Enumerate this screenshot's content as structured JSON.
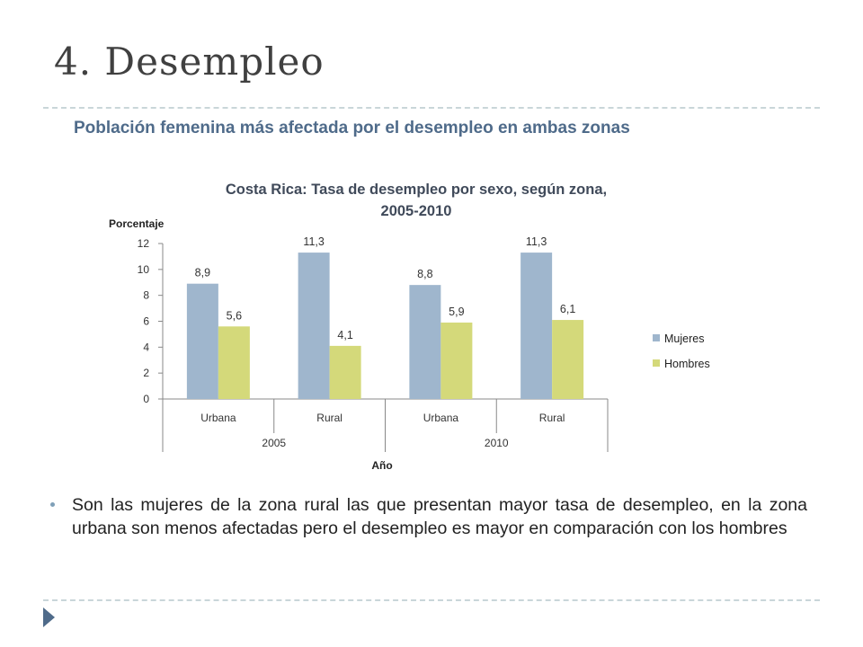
{
  "slide": {
    "title": "4. Desempleo",
    "subtitle": "Población femenina más afectada por el desempleo en ambas zonas",
    "bullet": "Son las mujeres de la zona rural las que presentan mayor tasa de desempleo,  en la zona urbana son menos afectadas pero el desempleo es mayor en comparación con los hombres"
  },
  "chart_data": {
    "type": "bar",
    "title_line1": "Costa Rica: Tasa de desempleo por sexo, según zona,",
    "title_line2": "2005-2010",
    "ylabel": "Porcentaje",
    "xlabel": "Año",
    "ylim": [
      0,
      12
    ],
    "yticks": [
      "0",
      "2",
      "4",
      "6",
      "8",
      "10",
      "12"
    ],
    "categories": [
      "Urbana",
      "Rural",
      "Urbana",
      "Rural"
    ],
    "groups": [
      {
        "label": "2005",
        "span": 2
      },
      {
        "label": "2010",
        "span": 2
      }
    ],
    "series": [
      {
        "name": "Mujeres",
        "color": "#9fb6cd",
        "values": [
          8.9,
          11.3,
          8.8,
          11.3
        ],
        "labels": [
          "8,9",
          "11,3",
          "8,8",
          "11,3"
        ]
      },
      {
        "name": "Hombres",
        "color": "#d4d97a",
        "values": [
          5.6,
          4.1,
          5.9,
          6.1
        ],
        "labels": [
          "5,6",
          "4,1",
          "5,9",
          "6,1"
        ]
      }
    ],
    "legend_position": "right",
    "grid": false
  },
  "colors": {
    "title": "#404040",
    "subtitle": "#4f6b8a",
    "chart_title": "#404a5a",
    "rule": "#c9d6d9"
  }
}
